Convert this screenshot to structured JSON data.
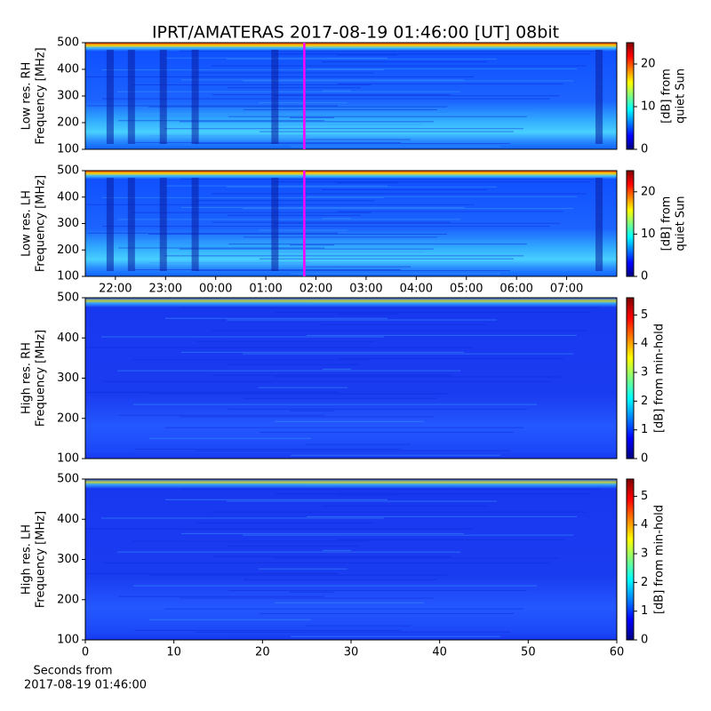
{
  "title": "IPRT/AMATERAS 2017-08-19 01:46:00 [UT]   08bit",
  "chart_data": [
    {
      "type": "heatmap",
      "style": "low",
      "ylabel": [
        "Low res. RH",
        "Frequency [MHz]"
      ],
      "ylim": [
        100,
        500
      ],
      "yticks": [
        100,
        200,
        300,
        400,
        500
      ],
      "xlim": [
        21.4,
        32.0
      ],
      "marker_x": 25.767,
      "marker_color": "#ff00ff",
      "clabel": [
        "[dB] from",
        "quiet Sun"
      ],
      "clim": [
        0,
        25
      ],
      "cticks": [
        0,
        10,
        20
      ]
    },
    {
      "type": "heatmap",
      "style": "low",
      "ylabel": [
        "Low res. LH",
        "Frequency [MHz]"
      ],
      "ylim": [
        100,
        500
      ],
      "yticks": [
        100,
        200,
        300,
        400,
        500
      ],
      "xlim": [
        21.4,
        32.0
      ],
      "xticks": [
        {
          "value": 22,
          "label": "22:00"
        },
        {
          "value": 23,
          "label": "23:00"
        },
        {
          "value": 24,
          "label": "00:00"
        },
        {
          "value": 25,
          "label": "01:00"
        },
        {
          "value": 26,
          "label": "02:00"
        },
        {
          "value": 27,
          "label": "03:00"
        },
        {
          "value": 28,
          "label": "04:00"
        },
        {
          "value": 29,
          "label": "05:00"
        },
        {
          "value": 30,
          "label": "06:00"
        },
        {
          "value": 31,
          "label": "07:00"
        }
      ],
      "marker_x": 25.767,
      "marker_color": "#ff00ff",
      "clabel": [
        "[dB] from",
        "quiet Sun"
      ],
      "clim": [
        0,
        25
      ],
      "cticks": [
        0,
        10,
        20
      ]
    },
    {
      "type": "heatmap",
      "style": "high",
      "ylabel": [
        "High res. RH",
        "Frequency [MHz]"
      ],
      "ylim": [
        100,
        500
      ],
      "yticks": [
        100,
        200,
        300,
        400,
        500
      ],
      "clabel": [
        "[dB] from min-hold"
      ],
      "clim": [
        0,
        5.6
      ],
      "cticks": [
        0,
        1,
        2,
        3,
        4,
        5
      ]
    },
    {
      "type": "heatmap",
      "style": "high",
      "ylabel": [
        "High res. LH",
        "Frequency [MHz]"
      ],
      "ylim": [
        100,
        500
      ],
      "yticks": [
        100,
        200,
        300,
        400,
        500
      ],
      "xlim": [
        0,
        60
      ],
      "xticks": [
        0,
        10,
        20,
        30,
        40,
        50,
        60
      ],
      "xlabel": [
        "Seconds from",
        "2017-08-19 01:46:00"
      ],
      "clabel": [
        "[dB] from min-hold"
      ],
      "clim": [
        0,
        5.6
      ],
      "cticks": [
        0,
        1,
        2,
        3,
        4,
        5
      ]
    }
  ]
}
